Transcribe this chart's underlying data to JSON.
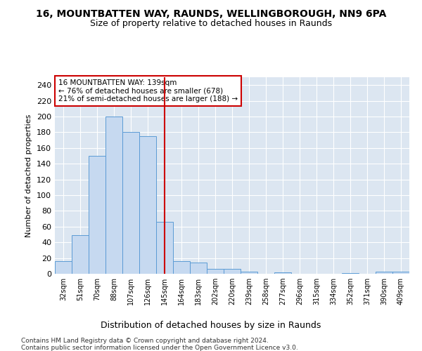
{
  "title1": "16, MOUNTBATTEN WAY, RAUNDS, WELLINGBOROUGH, NN9 6PA",
  "title2": "Size of property relative to detached houses in Raunds",
  "xlabel": "Distribution of detached houses by size in Raunds",
  "ylabel": "Number of detached properties",
  "categories": [
    "32sqm",
    "51sqm",
    "70sqm",
    "88sqm",
    "107sqm",
    "126sqm",
    "145sqm",
    "164sqm",
    "183sqm",
    "202sqm",
    "220sqm",
    "239sqm",
    "258sqm",
    "277sqm",
    "296sqm",
    "315sqm",
    "334sqm",
    "352sqm",
    "371sqm",
    "390sqm",
    "409sqm"
  ],
  "values": [
    16,
    49,
    150,
    200,
    180,
    175,
    66,
    16,
    14,
    6,
    6,
    3,
    0,
    2,
    0,
    0,
    0,
    1,
    0,
    3,
    3
  ],
  "bar_color": "#c6d9f0",
  "bar_edge_color": "#5b9bd5",
  "vline_x": 6.0,
  "vline_color": "#cc0000",
  "annotation_text": "16 MOUNTBATTEN WAY: 139sqm\n← 76% of detached houses are smaller (678)\n21% of semi-detached houses are larger (188) →",
  "annotation_box_color": "#ffffff",
  "annotation_box_edge": "#cc0000",
  "ylim": [
    0,
    250
  ],
  "yticks": [
    0,
    20,
    40,
    60,
    80,
    100,
    120,
    140,
    160,
    180,
    200,
    220,
    240
  ],
  "footer1": "Contains HM Land Registry data © Crown copyright and database right 2024.",
  "footer2": "Contains public sector information licensed under the Open Government Licence v3.0.",
  "background_color": "#dce6f1",
  "title1_fontsize": 10,
  "title2_fontsize": 9,
  "xlabel_fontsize": 9,
  "ylabel_fontsize": 8,
  "footer_fontsize": 6.5
}
